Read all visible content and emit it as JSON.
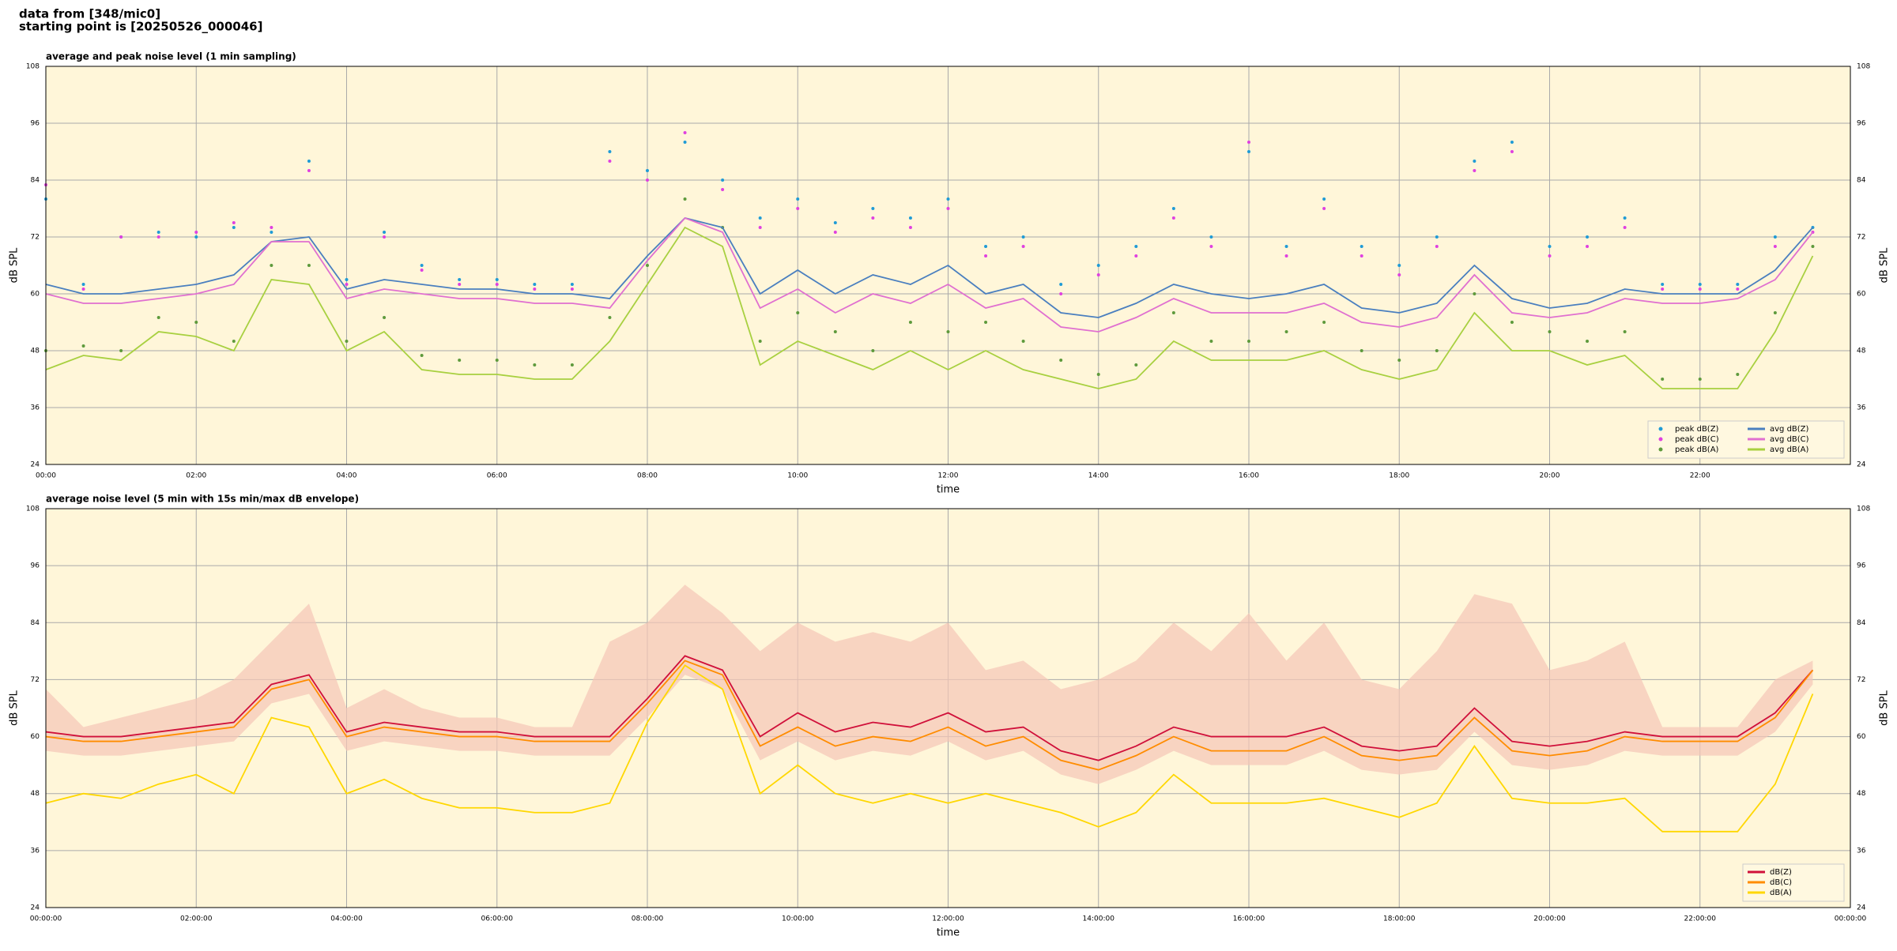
{
  "header": {
    "line1": "data from [348/mic0]",
    "line2": "starting point is [20250526_000046]"
  },
  "chart_data": [
    {
      "type": "line",
      "title": "average and peak noise level (1 min sampling)",
      "x_label": "time",
      "y_label": "dB SPL",
      "xlim": [
        "00:00",
        "24:00"
      ],
      "xticks": [
        "00:00",
        "02:00",
        "04:00",
        "06:00",
        "08:00",
        "10:00",
        "12:00",
        "14:00",
        "16:00",
        "18:00",
        "20:00",
        "22:00"
      ],
      "ylim": [
        24,
        108
      ],
      "yticks": [
        24,
        36,
        48,
        60,
        72,
        84,
        96,
        108
      ],
      "grid": true,
      "legend": "lower right",
      "legend_columns": 2,
      "x": [
        "00:00",
        "00:30",
        "01:00",
        "01:30",
        "02:00",
        "02:30",
        "03:00",
        "03:30",
        "04:00",
        "04:30",
        "05:00",
        "05:30",
        "06:00",
        "06:30",
        "07:00",
        "07:30",
        "08:00",
        "08:30",
        "09:00",
        "09:30",
        "10:00",
        "10:30",
        "11:00",
        "11:30",
        "12:00",
        "12:30",
        "13:00",
        "13:30",
        "14:00",
        "14:30",
        "15:00",
        "15:30",
        "16:00",
        "16:30",
        "17:00",
        "17:30",
        "18:00",
        "18:30",
        "19:00",
        "19:30",
        "20:00",
        "20:30",
        "21:00",
        "21:30",
        "22:00",
        "22:30",
        "23:00",
        "23:30"
      ],
      "series": [
        {
          "name": "peak dB(Z)",
          "kind": "scatter",
          "color": "#1f9bd6",
          "values": [
            80,
            62,
            72,
            73,
            72,
            74,
            73,
            88,
            63,
            73,
            66,
            63,
            63,
            62,
            62,
            90,
            86,
            92,
            84,
            76,
            80,
            75,
            78,
            76,
            80,
            70,
            72,
            62,
            66,
            70,
            78,
            72,
            90,
            70,
            80,
            70,
            66,
            72,
            88,
            92,
            70,
            72,
            76,
            62,
            62,
            62,
            72,
            74
          ]
        },
        {
          "name": "peak dB(C)",
          "kind": "scatter",
          "color": "#e040e0",
          "values": [
            83,
            61,
            72,
            72,
            73,
            75,
            74,
            86,
            62,
            72,
            65,
            62,
            62,
            61,
            61,
            88,
            84,
            94,
            82,
            74,
            78,
            73,
            76,
            74,
            78,
            68,
            70,
            60,
            64,
            68,
            76,
            70,
            92,
            68,
            78,
            68,
            64,
            70,
            86,
            90,
            68,
            70,
            74,
            61,
            61,
            61,
            70,
            73
          ]
        },
        {
          "name": "peak dB(A)",
          "kind": "scatter",
          "color": "#5e9a3c",
          "values": [
            48,
            49,
            48,
            55,
            54,
            50,
            66,
            66,
            50,
            55,
            47,
            46,
            46,
            45,
            45,
            55,
            66,
            80,
            74,
            50,
            56,
            52,
            48,
            54,
            52,
            54,
            50,
            46,
            43,
            45,
            56,
            50,
            50,
            52,
            54,
            48,
            46,
            48,
            60,
            54,
            52,
            50,
            52,
            42,
            42,
            43,
            56,
            70
          ]
        },
        {
          "name": "avg dB(Z)",
          "kind": "line",
          "color": "#4a7fbf",
          "values": [
            62,
            60,
            60,
            61,
            62,
            64,
            71,
            72,
            61,
            63,
            62,
            61,
            61,
            60,
            60,
            59,
            68,
            76,
            74,
            60,
            65,
            60,
            64,
            62,
            66,
            60,
            62,
            56,
            55,
            58,
            62,
            60,
            59,
            60,
            62,
            57,
            56,
            58,
            66,
            59,
            57,
            58,
            61,
            60,
            60,
            60,
            65,
            74
          ]
        },
        {
          "name": "avg dB(C)",
          "kind": "line",
          "color": "#e070d0",
          "values": [
            60,
            58,
            58,
            59,
            60,
            62,
            71,
            71,
            59,
            61,
            60,
            59,
            59,
            58,
            58,
            57,
            67,
            76,
            73,
            57,
            61,
            56,
            60,
            58,
            62,
            57,
            59,
            53,
            52,
            55,
            59,
            56,
            56,
            56,
            58,
            54,
            53,
            55,
            64,
            56,
            55,
            56,
            59,
            58,
            58,
            59,
            63,
            73
          ]
        },
        {
          "name": "avg dB(A)",
          "kind": "line",
          "color": "#a8d040",
          "values": [
            44,
            47,
            46,
            52,
            51,
            48,
            63,
            62,
            48,
            52,
            44,
            43,
            43,
            42,
            42,
            50,
            62,
            74,
            70,
            45,
            50,
            47,
            44,
            48,
            44,
            48,
            44,
            42,
            40,
            42,
            50,
            46,
            46,
            46,
            48,
            44,
            42,
            44,
            56,
            48,
            48,
            45,
            47,
            40,
            40,
            40,
            52,
            68
          ]
        }
      ]
    },
    {
      "type": "line",
      "title": "average noise level (5 min with 15s min/max dB envelope)",
      "x_label": "time",
      "y_label": "dB SPL",
      "xlim": [
        "00:00:00",
        "24:00:00"
      ],
      "xticks": [
        "00:00:00",
        "02:00:00",
        "04:00:00",
        "06:00:00",
        "08:00:00",
        "10:00:00",
        "12:00:00",
        "14:00:00",
        "16:00:00",
        "18:00:00",
        "20:00:00",
        "22:00:00",
        {
          "value": "24:00:00",
          "label": "00:00:00"
        }
      ],
      "ylim": [
        24,
        108
      ],
      "yticks": [
        24,
        36,
        48,
        60,
        72,
        84,
        96,
        108
      ],
      "grid": true,
      "legend": "lower right",
      "legend_columns": 1,
      "x": [
        "00:00:00",
        "00:30:00",
        "01:00:00",
        "01:30:00",
        "02:00:00",
        "02:30:00",
        "03:00:00",
        "03:30:00",
        "04:00:00",
        "04:30:00",
        "05:00:00",
        "05:30:00",
        "06:00:00",
        "06:30:00",
        "07:00:00",
        "07:30:00",
        "08:00:00",
        "08:30:00",
        "09:00:00",
        "09:30:00",
        "10:00:00",
        "10:30:00",
        "11:00:00",
        "11:30:00",
        "12:00:00",
        "12:30:00",
        "13:00:00",
        "13:30:00",
        "14:00:00",
        "14:30:00",
        "15:00:00",
        "15:30:00",
        "16:00:00",
        "16:30:00",
        "17:00:00",
        "17:30:00",
        "18:00:00",
        "18:30:00",
        "19:00:00",
        "19:30:00",
        "20:00:00",
        "20:30:00",
        "21:00:00",
        "21:30:00",
        "22:00:00",
        "22:30:00",
        "23:00:00",
        "23:30:00"
      ],
      "envelope": {
        "color": "#f5c6b6",
        "max": [
          70,
          62,
          64,
          66,
          68,
          72,
          80,
          88,
          66,
          70,
          66,
          64,
          64,
          62,
          62,
          80,
          84,
          92,
          86,
          78,
          84,
          80,
          82,
          80,
          84,
          74,
          76,
          70,
          72,
          76,
          84,
          78,
          86,
          76,
          84,
          72,
          70,
          78,
          90,
          88,
          74,
          76,
          80,
          62,
          62,
          62,
          72,
          76
        ],
        "min": [
          57,
          56,
          56,
          57,
          58,
          59,
          67,
          69,
          57,
          59,
          58,
          57,
          57,
          56,
          56,
          56,
          64,
          73,
          70,
          55,
          59,
          55,
          57,
          56,
          59,
          55,
          57,
          52,
          50,
          53,
          57,
          54,
          54,
          54,
          57,
          53,
          52,
          53,
          61,
          54,
          53,
          54,
          57,
          56,
          56,
          56,
          61,
          71
        ]
      },
      "series": [
        {
          "name": "dB(Z)",
          "kind": "line",
          "color": "#d0103a",
          "values": [
            61,
            60,
            60,
            61,
            62,
            63,
            71,
            73,
            61,
            63,
            62,
            61,
            61,
            60,
            60,
            60,
            68,
            77,
            74,
            60,
            65,
            61,
            63,
            62,
            65,
            61,
            62,
            57,
            55,
            58,
            62,
            60,
            60,
            60,
            62,
            58,
            57,
            58,
            66,
            59,
            58,
            59,
            61,
            60,
            60,
            60,
            65,
            74
          ]
        },
        {
          "name": "dB(C)",
          "kind": "line",
          "color": "#ff8c00",
          "values": [
            60,
            59,
            59,
            60,
            61,
            62,
            70,
            72,
            60,
            62,
            61,
            60,
            60,
            59,
            59,
            59,
            67,
            76,
            73,
            58,
            62,
            58,
            60,
            59,
            62,
            58,
            60,
            55,
            53,
            56,
            60,
            57,
            57,
            57,
            60,
            56,
            55,
            56,
            64,
            57,
            56,
            57,
            60,
            59,
            59,
            59,
            64,
            74
          ]
        },
        {
          "name": "dB(A)",
          "kind": "line",
          "color": "#ffd700",
          "values": [
            46,
            48,
            47,
            50,
            52,
            48,
            64,
            62,
            48,
            51,
            47,
            45,
            45,
            44,
            44,
            46,
            63,
            75,
            70,
            48,
            54,
            48,
            46,
            48,
            46,
            48,
            46,
            44,
            41,
            44,
            52,
            46,
            46,
            46,
            47,
            45,
            43,
            46,
            58,
            47,
            46,
            46,
            47,
            40,
            40,
            40,
            50,
            69
          ]
        }
      ]
    }
  ]
}
